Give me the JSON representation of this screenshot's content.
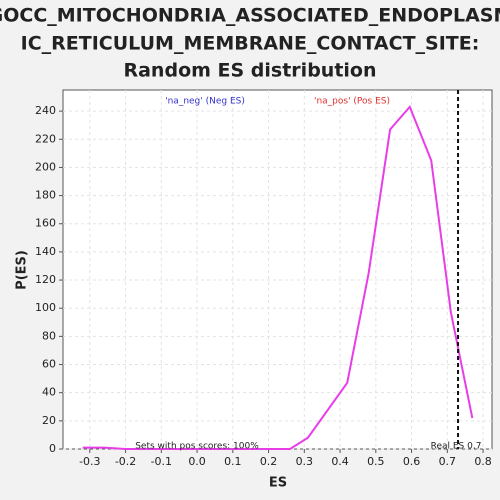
{
  "chart_data": {
    "type": "line",
    "title_lines": [
      "GOCC_MITOCHONDRIA_ASSOCIATED_ENDOPLASM",
      "IC_RETICULUM_MEMBRANE_CONTACT_SITE:",
      "Random ES distribution"
    ],
    "x_label": "ES",
    "y_label": "P(ES)",
    "x": [
      -0.32,
      -0.26,
      -0.2,
      -0.14,
      -0.08,
      -0.02,
      0.04,
      0.1,
      0.16,
      0.22,
      0.26,
      0.31,
      0.42,
      0.48,
      0.54,
      0.595,
      0.655,
      0.71,
      0.77
    ],
    "series": [
      {
        "name": "P(ES)",
        "color": "#e83ee8",
        "values": [
          1,
          1,
          0,
          0,
          0,
          0,
          0,
          0,
          0,
          0,
          0,
          8,
          47,
          125,
          227,
          243,
          205,
          97,
          22
        ]
      }
    ],
    "xlim": [
      -0.375,
      0.825
    ],
    "ylim": [
      0,
      255
    ],
    "xticks": [
      -0.3,
      -0.2,
      -0.1,
      {
        "value": 0,
        "label": "0.0"
      },
      0.1,
      0.2,
      0.3,
      0.4,
      0.5,
      0.6,
      0.7,
      0.8
    ],
    "yticks": [
      0,
      20,
      40,
      60,
      80,
      100,
      120,
      140,
      160,
      180,
      200,
      220,
      240
    ],
    "grid": true,
    "neg_label": {
      "text": "'na_neg' (Neg ES)",
      "color": "#3333cc"
    },
    "pos_label": {
      "text": "'na_pos' (Pos ES)",
      "color": "#e03030"
    },
    "real_es": {
      "value": 0.73,
      "label": "Real ES 0.7"
    },
    "pos_note": "Sets with pos scores: 100%"
  }
}
